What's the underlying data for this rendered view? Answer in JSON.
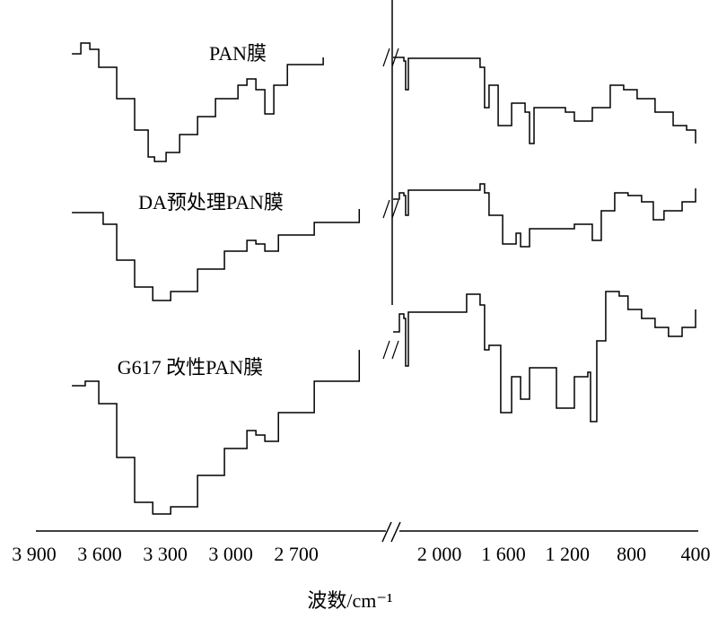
{
  "chart_data": {
    "type": "line",
    "xlabel": "波数/cm⁻¹",
    "xlim": [
      3900,
      400
    ],
    "xbreak": [
      2290,
      2250
    ],
    "ylim": [
      0,
      592
    ],
    "xticks": [
      {
        "value": 3900,
        "label": "3 900"
      },
      {
        "value": 3600,
        "label": "3 600"
      },
      {
        "value": 3300,
        "label": "3 300"
      },
      {
        "value": 3000,
        "label": "3 000"
      },
      {
        "value": 2700,
        "label": "2 700"
      },
      {
        "value": 2000,
        "label": "2 000"
      },
      {
        "value": 1600,
        "label": "1 600"
      },
      {
        "value": 1200,
        "label": "1 200"
      },
      800,
      400
    ],
    "series": [
      {
        "name": "PAN膜",
        "color": "#000000",
        "x": [
          3727,
          3686,
          3645,
          3604,
          3522,
          3440,
          3378,
          3349,
          3296,
          3234,
          3152,
          3070,
          2967,
          2926,
          2885,
          2844,
          2803,
          2741,
          2577,
          2289,
          2250,
          2222,
          2211,
          2194,
          1774,
          1746,
          1718,
          1690,
          1633,
          1549,
          1465,
          1437,
          1409,
          1213,
          1157,
          1045,
          933,
          849,
          765,
          653,
          540,
          456,
          400
        ],
        "values": [
          532,
          544,
          537,
          517,
          482,
          447,
          417,
          412,
          422,
          442,
          462,
          482,
          497,
          504,
          492,
          465,
          497,
          520,
          528,
          528,
          528,
          524,
          492,
          527,
          527,
          517,
          472,
          497,
          452,
          477,
          467,
          432,
          472,
          467,
          457,
          472,
          497,
          492,
          482,
          467,
          452,
          447,
          432
        ]
      },
      {
        "name": "DA预处理PAN膜",
        "color": "#000000",
        "x": [
          3727,
          3625,
          3584,
          3522,
          3440,
          3357,
          3275,
          3152,
          3029,
          2926,
          2885,
          2844,
          2782,
          2618,
          2412,
          2289,
          2250,
          2222,
          2211,
          2194,
          1746,
          1718,
          1690,
          1605,
          1521,
          1493,
          1437,
          1269,
          1157,
          1045,
          989,
          905,
          822,
          737,
          664,
          597,
          484,
          400
        ],
        "values": [
          355,
          355,
          342,
          302,
          272,
          257,
          267,
          292,
          312,
          324,
          320,
          312,
          330,
          344,
          359,
          370,
          377,
          374,
          352,
          380,
          387,
          377,
          352,
          320,
          332,
          317,
          337,
          337,
          342,
          324,
          357,
          377,
          374,
          367,
          347,
          357,
          367,
          382
        ]
      },
      {
        "name": "G617 改性PAN膜",
        "color": "#000000",
        "x": [
          3727,
          3666,
          3604,
          3522,
          3440,
          3357,
          3275,
          3152,
          3029,
          2926,
          2885,
          2844,
          2782,
          2618,
          2412,
          2289,
          2250,
          2222,
          2211,
          2194,
          1830,
          1746,
          1718,
          1690,
          1617,
          1549,
          1493,
          1437,
          1353,
          1269,
          1213,
          1157,
          1073,
          1056,
          1017,
          961,
          877,
          822,
          737,
          653,
          569,
          484,
          400
        ],
        "values": [
          162,
          167,
          142,
          82,
          32,
          19,
          27,
          62,
          92,
          112,
          107,
          100,
          132,
          167,
          202,
          222,
          242,
          237,
          184,
          244,
          264,
          252,
          202,
          207,
          132,
          172,
          147,
          182,
          182,
          137,
          137,
          172,
          177,
          122,
          212,
          267,
          262,
          247,
          237,
          227,
          217,
          227,
          247
        ]
      }
    ]
  }
}
